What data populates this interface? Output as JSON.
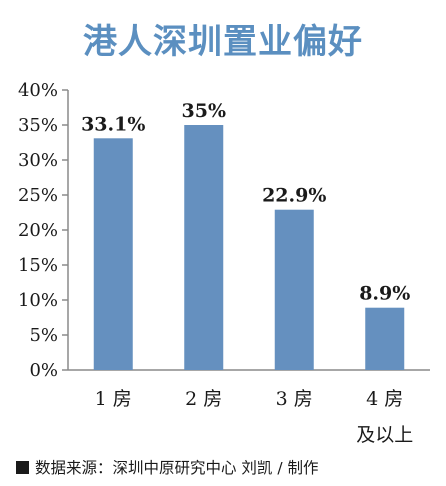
{
  "chart_data": {
    "type": "bar",
    "title": "港人深圳置业偏好",
    "categories": [
      "1 房",
      "2 房",
      "3 房",
      "4 房\n及以上"
    ],
    "values": [
      33.1,
      35,
      22.9,
      8.9
    ],
    "data_labels": [
      "33.1%",
      "35%",
      "22.9%",
      "8.9%"
    ],
    "yticks": [
      "0%",
      "5%",
      "10%",
      "15%",
      "20%",
      "25%",
      "30%",
      "35%",
      "40%"
    ],
    "ylim": [
      0,
      40
    ],
    "xlabel": "",
    "ylabel": "",
    "grid": false,
    "bar_color": "#6590bf"
  },
  "source": "数据来源：深圳中原研究中心 刘凯 / 制作"
}
